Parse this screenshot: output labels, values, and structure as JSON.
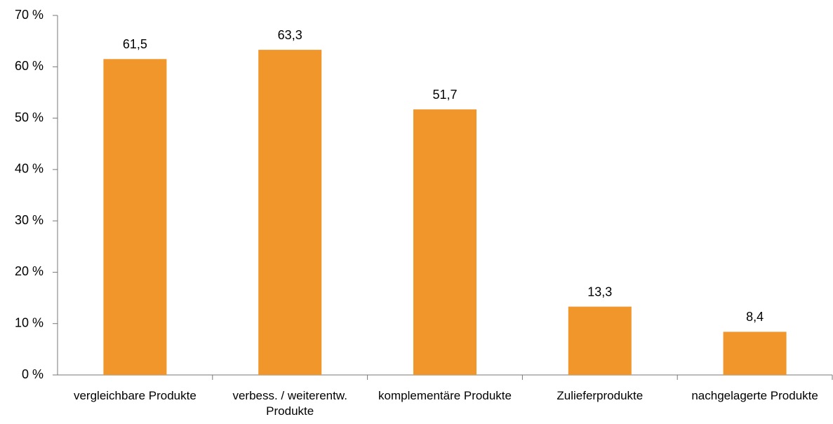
{
  "chart_data": {
    "type": "bar",
    "categories": [
      "vergleichbare Produkte",
      "verbess. / weiterentw. Produkte",
      "komplementäre Produkte",
      "Zulieferprodukte",
      "nachgelagerte Produkte"
    ],
    "values": [
      61.5,
      63.3,
      51.7,
      13.3,
      8.4
    ],
    "value_labels": [
      "61,5",
      "63,3",
      "51,7",
      "13,3",
      "8,4"
    ],
    "color": "#f0962a",
    "ylim": [
      0,
      70
    ],
    "yticks": [
      {
        "value": 0,
        "label": "0 %"
      },
      {
        "value": 10,
        "label": "10 %"
      },
      {
        "value": 20,
        "label": "20 %"
      },
      {
        "value": 30,
        "label": "30 %"
      },
      {
        "value": 40,
        "label": "40 %"
      },
      {
        "value": 50,
        "label": "50 %"
      },
      {
        "value": 60,
        "label": "60 %"
      },
      {
        "value": 70,
        "label": "70 %"
      }
    ],
    "grid": false
  }
}
